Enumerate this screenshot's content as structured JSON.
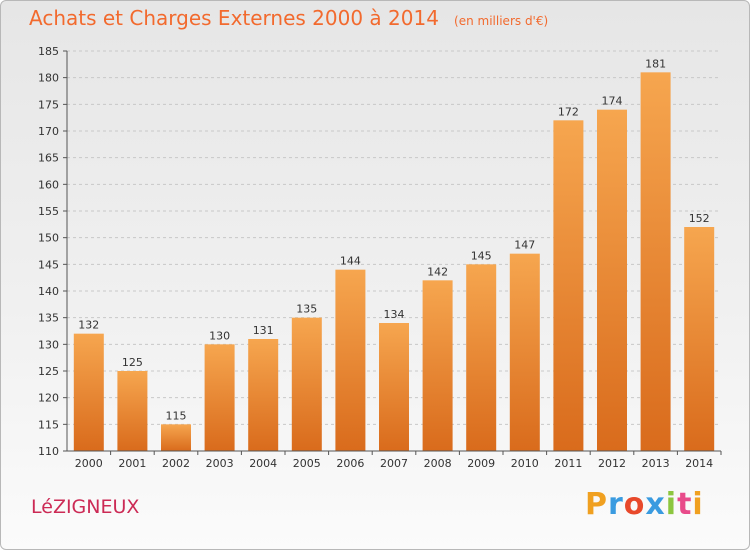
{
  "title": "Achats et Charges Externes 2000 à 2014",
  "unit": "(en milliers d'€)",
  "place": "LéZIGNEUX",
  "brand": {
    "letters": [
      "P",
      "r",
      "o",
      "x",
      "i",
      "t",
      "i"
    ],
    "colors": [
      "#f0a020",
      "#3a9be0",
      "#e8492b",
      "#3a9be0",
      "#8cc63f",
      "#e84b8a",
      "#f0a020"
    ]
  },
  "colors": {
    "bar_light": "#f6a64f",
    "bar_dark": "#d96b1c",
    "title": "#f26a2e",
    "place": "#cc2a55"
  },
  "chart_data": {
    "type": "bar",
    "categories": [
      "2000",
      "2001",
      "2002",
      "2003",
      "2004",
      "2005",
      "2006",
      "2007",
      "2008",
      "2009",
      "2010",
      "2011",
      "2012",
      "2013",
      "2014"
    ],
    "values": [
      132,
      125,
      115,
      130,
      131,
      135,
      144,
      134,
      142,
      145,
      147,
      172,
      174,
      181,
      152
    ],
    "ylim": [
      110,
      185
    ],
    "yticks": [
      110,
      115,
      120,
      125,
      130,
      135,
      140,
      145,
      150,
      155,
      160,
      165,
      170,
      175,
      180,
      185
    ],
    "grid": true,
    "xlabel": "",
    "ylabel": ""
  }
}
